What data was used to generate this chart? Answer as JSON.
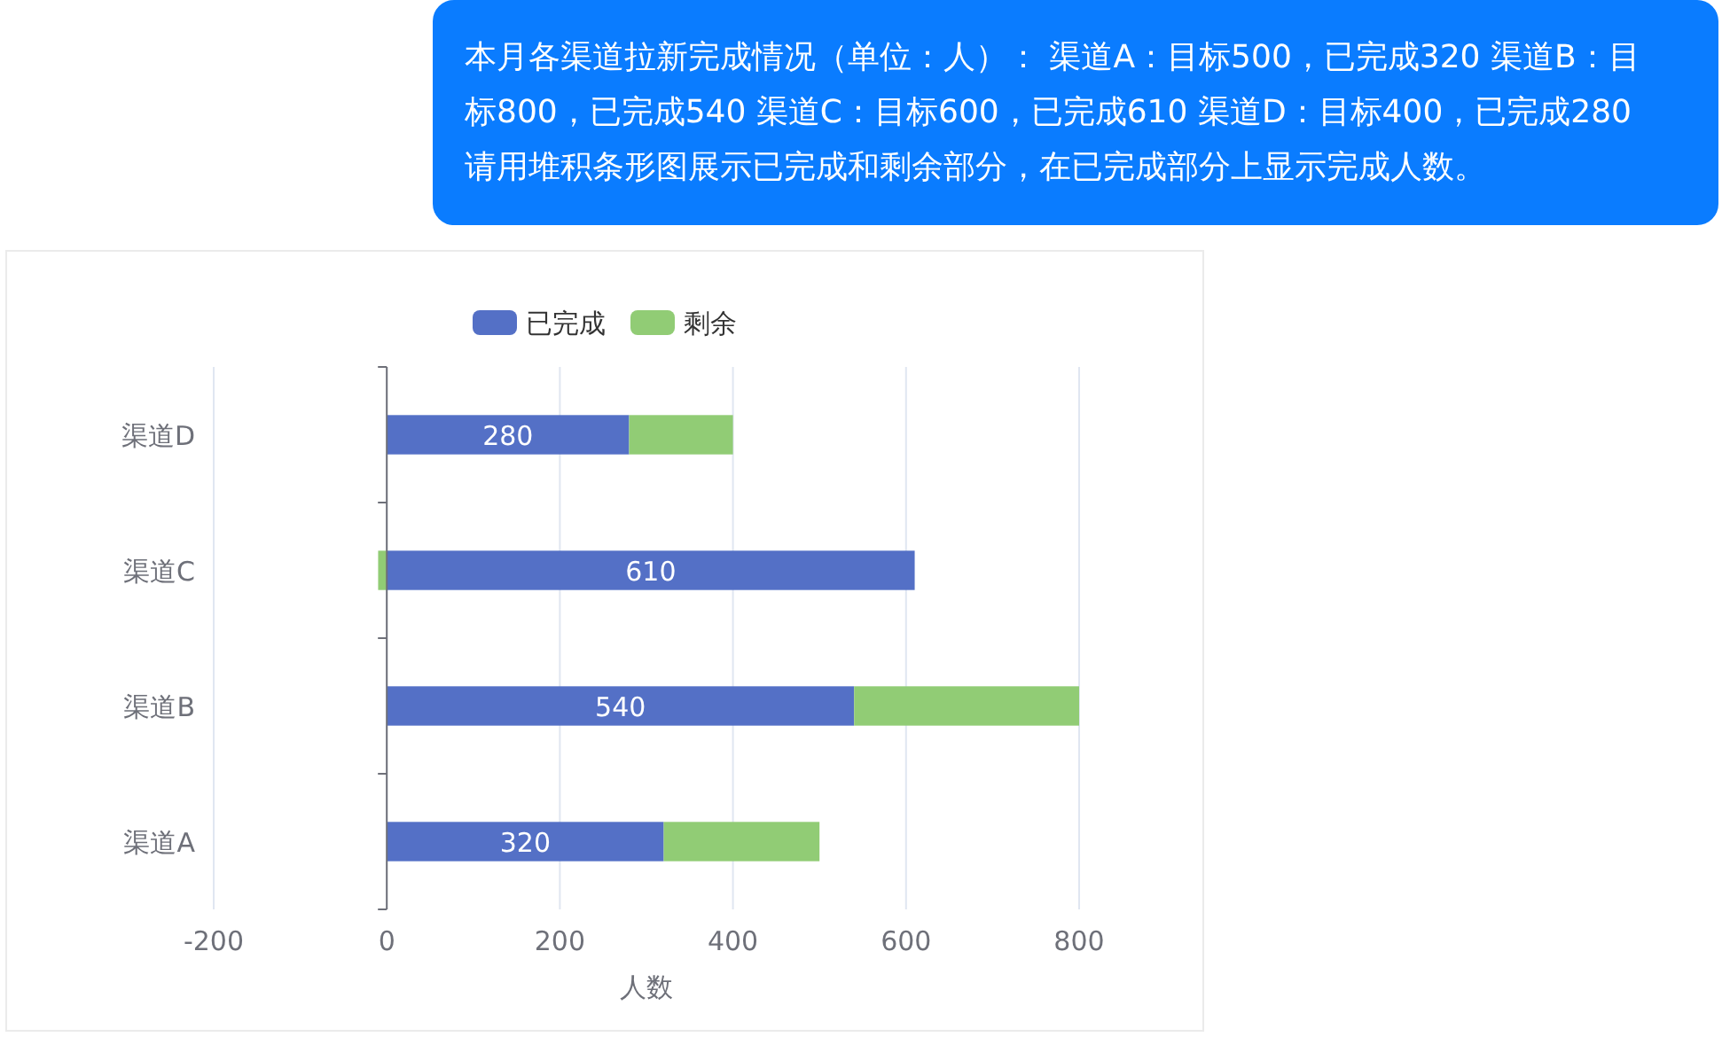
{
  "chart_data": {
    "type": "bar",
    "orientation": "horizontal",
    "stacked": true,
    "categories": [
      "渠道D",
      "渠道C",
      "渠道B",
      "渠道A"
    ],
    "series": [
      {
        "name": "已完成",
        "color": "#5470c6",
        "values": [
          280,
          610,
          540,
          320
        ],
        "value_labels": [
          "280",
          "610",
          "540",
          "320"
        ]
      },
      {
        "name": "剩余",
        "color": "#91cc75",
        "values": [
          120,
          -10,
          260,
          180
        ]
      }
    ],
    "xlabel": "人数",
    "xlim": [
      -200,
      800
    ],
    "xticks": [
      -200,
      0,
      200,
      400,
      600,
      800
    ],
    "grid": "x",
    "legend": "top",
    "annotations": [
      "本月各渠道拉新完成情况（单位：人）： 渠道A：目标500，已完成320 渠道B：目标800，已完成540 渠道C：目标600，已完成610 渠道D：目标400，已完成280 请用堆积条形图展示已完成和剩余部分，在已完成部分上显示完成人数。"
    ]
  }
}
